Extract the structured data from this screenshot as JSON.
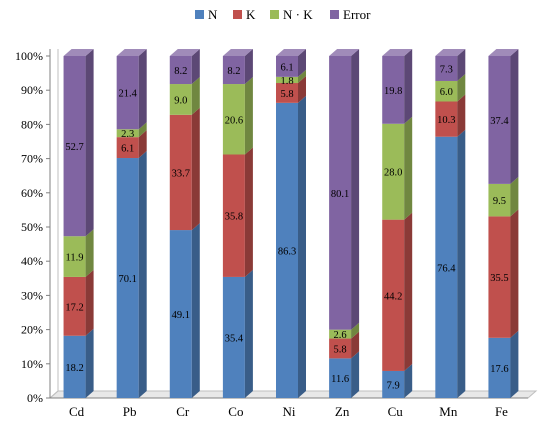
{
  "chart_data": {
    "type": "bar",
    "stacked": true,
    "percent_stacked": true,
    "style_3d": true,
    "categories": [
      "Cd",
      "Pb",
      "Cr",
      "Co",
      "Ni",
      "Zn",
      "Cu",
      "Mn",
      "Fe"
    ],
    "series": [
      {
        "name": "N",
        "color": "#4f81bd",
        "values": [
          18.2,
          70.1,
          49.1,
          35.4,
          86.3,
          11.6,
          7.9,
          76.4,
          17.6
        ]
      },
      {
        "name": "K",
        "color": "#c0504d",
        "values": [
          17.2,
          6.1,
          33.7,
          35.8,
          5.8,
          5.8,
          44.2,
          10.3,
          35.5
        ]
      },
      {
        "name": "N · K",
        "color": "#9bbb59",
        "values": [
          11.9,
          2.3,
          9.0,
          20.6,
          1.8,
          2.6,
          28.0,
          6.0,
          9.5
        ]
      },
      {
        "name": "Error",
        "color": "#8064a2",
        "values": [
          52.7,
          21.4,
          8.2,
          8.2,
          6.1,
          80.1,
          19.8,
          7.3,
          37.4
        ]
      }
    ],
    "data_labels": [
      [
        "18.2",
        "70.1",
        "49.1",
        "35.4",
        "86.3",
        "11.6",
        "7.9",
        "76.4",
        "17.6"
      ],
      [
        "17.2",
        "6.1",
        "33.7",
        "35.8",
        "5.8",
        "5.8",
        "44.2",
        "10.3",
        "35.5"
      ],
      [
        "11.9",
        "2.3",
        "9.0",
        "20.6",
        "1.8",
        "2.6",
        "28.0",
        "6.0",
        "9.5"
      ],
      [
        "52.7",
        "21.4",
        "8.2",
        "8.2",
        "6.1",
        "80.1",
        "19.8",
        "7.3",
        "37.4"
      ]
    ],
    "y_ticks": [
      "0%",
      "10%",
      "20%",
      "30%",
      "40%",
      "50%",
      "60%",
      "70%",
      "80%",
      "90%",
      "100%"
    ],
    "ylim": [
      0,
      100
    ],
    "title": "",
    "xlabel": "",
    "ylabel": "",
    "legend_position": "top",
    "grid": false
  }
}
